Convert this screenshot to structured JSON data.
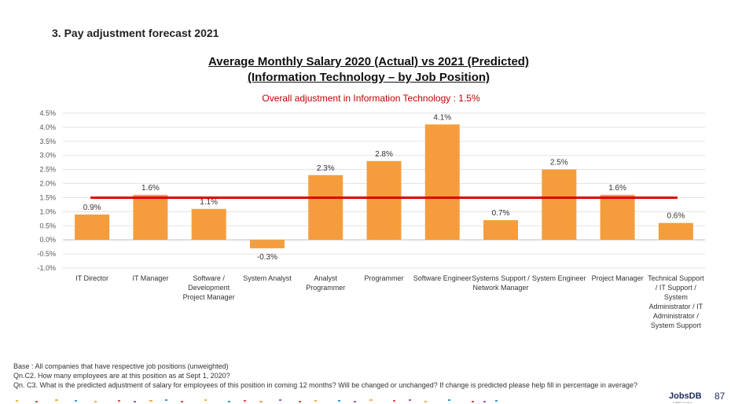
{
  "header": {
    "section_title": "3. Pay adjustment forecast 2021"
  },
  "chart_data": {
    "type": "bar",
    "title_line1": "Average Monthly Salary 2020 (Actual) vs 2021 (Predicted)",
    "title_line2": "(Information Technology – by Job Position)",
    "subtitle": "Overall adjustment in Information Technology  : 1.5%",
    "categories": [
      [
        "IT Director"
      ],
      [
        "IT Manager"
      ],
      [
        "Software /",
        "Development",
        "Project Manager"
      ],
      [
        "System Analyst"
      ],
      [
        "Analyst",
        "Programmer"
      ],
      [
        "Programmer"
      ],
      [
        "Software Engineer"
      ],
      [
        "Systems Support /",
        "Network Manager"
      ],
      [
        "System Engineer"
      ],
      [
        "Project Manager"
      ],
      [
        "Technical Support",
        "/ IT Support  /",
        "System",
        "Administrator / IT",
        "Administrator /",
        "System Support"
      ]
    ],
    "values": [
      0.9,
      1.6,
      1.1,
      -0.3,
      2.3,
      2.8,
      4.1,
      0.7,
      2.5,
      1.6,
      0.6
    ],
    "value_labels": [
      "0.9%",
      "1.6%",
      "1.1%",
      "-0.3%",
      "2.3%",
      "2.8%",
      "4.1%",
      "0.7%",
      "2.5%",
      "1.6%",
      "0.6%"
    ],
    "ylim": [
      -1.0,
      4.5
    ],
    "yticks": [
      4.5,
      4.0,
      3.5,
      3.0,
      2.5,
      2.0,
      1.5,
      1.0,
      0.5,
      0.0,
      -0.5,
      -1.0
    ],
    "ytick_labels": [
      "4.5%",
      "4.0%",
      "3.5%",
      "3.0%",
      "2.5%",
      "2.0%",
      "1.5%",
      "1.0%",
      "0.5%",
      "0.0%",
      "-0.5%",
      "-1.0%"
    ],
    "reference_line": 1.5,
    "grid": true,
    "bar_color": "#f59d3d",
    "line_color": "#e00000"
  },
  "footnotes": [
    "Base : All companies that have respective job positions (unweighted)",
    "Qn.C2. How many employees are at this position as at Sept 1, 2020?",
    "Qn. C3. What is the predicted adjustment of salary for employees of this position in coming 12 months? Will be changed or unchanged?  If change is predicted please help fill in percentage in average?"
  ],
  "footer": {
    "brand": "JobsDB",
    "brand_sub": "A SEEK Company",
    "page_number": "87"
  }
}
